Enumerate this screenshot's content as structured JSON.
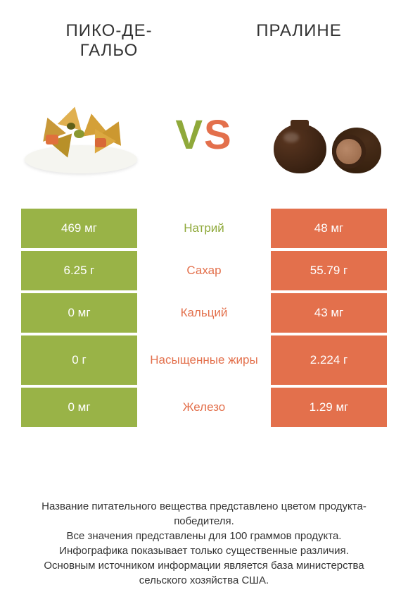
{
  "header": {
    "left_title": "ПИКО-ДЕ-\nГАЛЬО",
    "right_title": "ПРАЛИНЕ"
  },
  "vs": {
    "v": "V",
    "s": "S"
  },
  "colors": {
    "green": "#99b347",
    "orange": "#e3704c",
    "mid_green_text": "#8fa93a",
    "mid_orange_text": "#e3704c",
    "white": "#ffffff",
    "footer_text": "#333333"
  },
  "table": {
    "rows": [
      {
        "left": "469 мг",
        "mid": "Натрий",
        "right": "48 мг",
        "winner": "left",
        "tall": false
      },
      {
        "left": "6.25 г",
        "mid": "Сахар",
        "right": "55.79 г",
        "winner": "right",
        "tall": false
      },
      {
        "left": "0 мг",
        "mid": "Кальций",
        "right": "43 мг",
        "winner": "right",
        "tall": false
      },
      {
        "left": "0 г",
        "mid": "Насыщенные жиры",
        "right": "2.224 г",
        "winner": "right",
        "tall": true
      },
      {
        "left": "0 мг",
        "mid": "Железо",
        "right": "1.29 мг",
        "winner": "right",
        "tall": false
      }
    ]
  },
  "footer": {
    "line1": "Название питательного вещества представлено цветом продукта-победителя.",
    "line2": "Все значения представлены для 100 граммов продукта.",
    "line3": "Инфографика показывает только существенные различия.",
    "line4": "Основным источником информации является база министерства сельского хозяйства США."
  }
}
